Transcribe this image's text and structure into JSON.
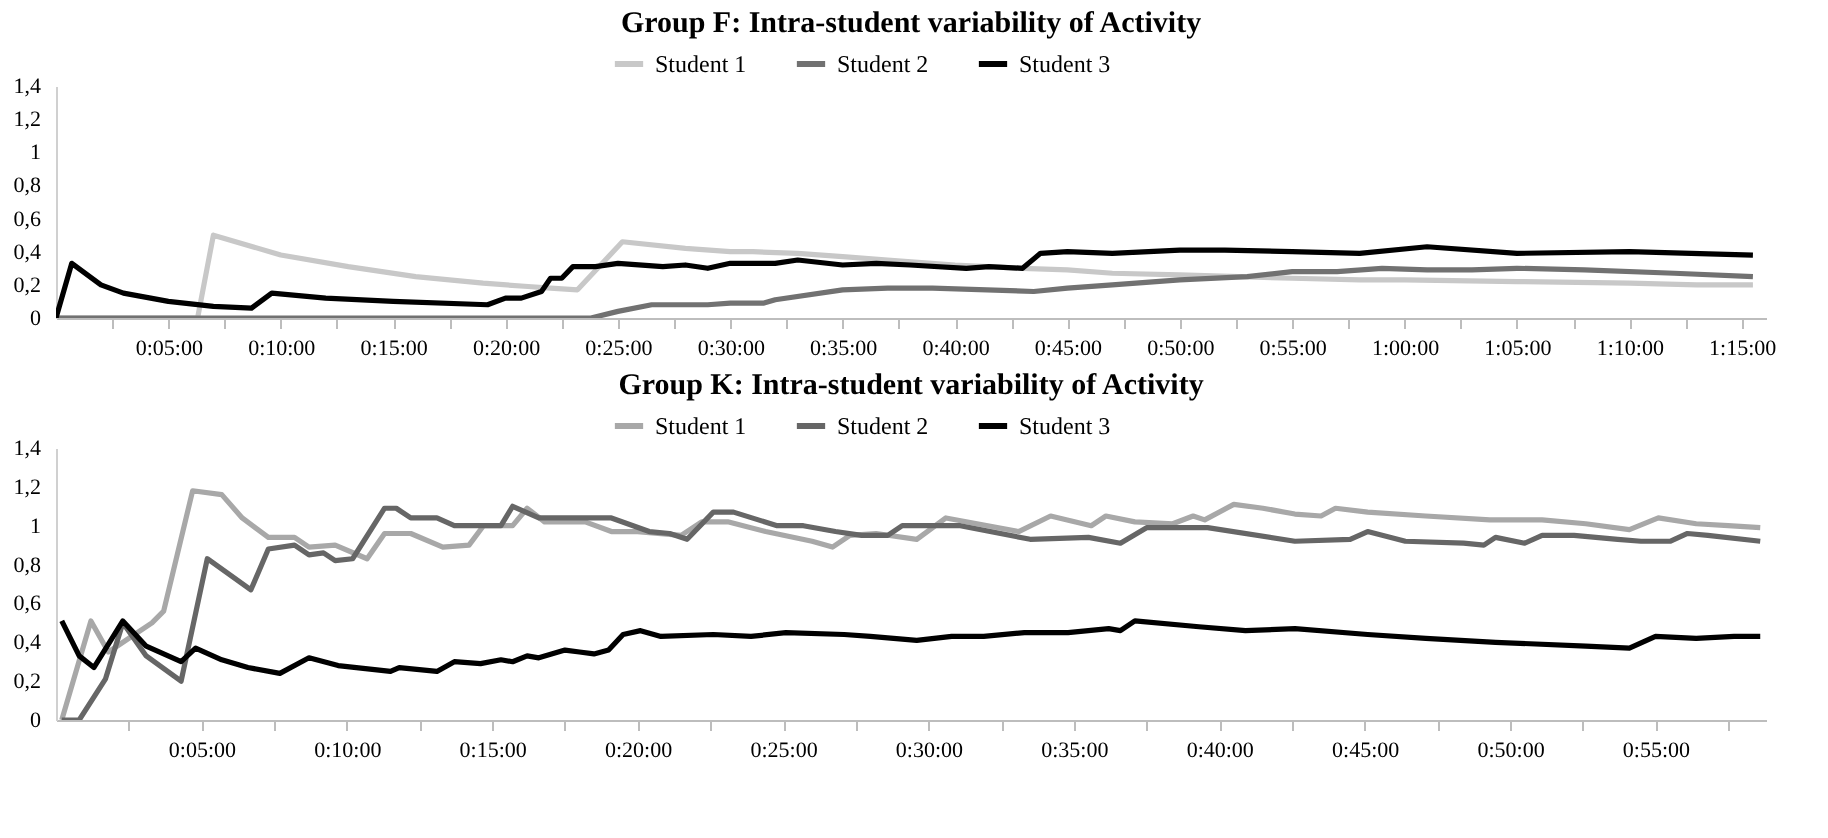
{
  "chart_data": [
    {
      "type": "line",
      "title": "Group F: Intra-student variability of Activity",
      "legend": "top",
      "xlim": [
        0,
        1.268
      ],
      "ylim": [
        0,
        1.4
      ],
      "xticks": [
        {
          "value": 0.041667,
          "label": null
        },
        {
          "value": 0.083333,
          "label": "0:05:00"
        },
        {
          "value": 0.125,
          "label": null
        },
        {
          "value": 0.166667,
          "label": "0:10:00"
        },
        {
          "value": 0.208333,
          "label": null
        },
        {
          "value": 0.25,
          "label": "0:15:00"
        },
        {
          "value": 0.291667,
          "label": null
        },
        {
          "value": 0.333333,
          "label": "0:20:00"
        },
        {
          "value": 0.375,
          "label": null
        },
        {
          "value": 0.416667,
          "label": "0:25:00"
        },
        {
          "value": 0.458333,
          "label": null
        },
        {
          "value": 0.5,
          "label": "0:30:00"
        },
        {
          "value": 0.541667,
          "label": null
        },
        {
          "value": 0.583333,
          "label": "0:35:00"
        },
        {
          "value": 0.625,
          "label": null
        },
        {
          "value": 0.666667,
          "label": "0:40:00"
        },
        {
          "value": 0.708333,
          "label": null
        },
        {
          "value": 0.75,
          "label": "0:45:00"
        },
        {
          "value": 0.791667,
          "label": null
        },
        {
          "value": 0.833333,
          "label": "0:50:00"
        },
        {
          "value": 0.875,
          "label": null
        },
        {
          "value": 0.916667,
          "label": "0:55:00"
        },
        {
          "value": 0.958333,
          "label": null
        },
        {
          "value": 1,
          "label": "1:00:00"
        },
        {
          "value": 1.041667,
          "label": null
        },
        {
          "value": 1.083333,
          "label": "1:05:00"
        },
        {
          "value": 1.125,
          "label": null
        },
        {
          "value": 1.166667,
          "label": "1:10:00"
        },
        {
          "value": 1.208333,
          "label": null
        },
        {
          "value": 1.25,
          "label": "1:15:00"
        }
      ],
      "yticks": [
        {
          "value": 0,
          "label": "0"
        },
        {
          "value": 0.2,
          "label": "0,2"
        },
        {
          "value": 0.4,
          "label": "0,4"
        },
        {
          "value": 0.6,
          "label": "0,6"
        },
        {
          "value": 0.8,
          "label": "0,8"
        },
        {
          "value": 1,
          "label": "1"
        },
        {
          "value": 1.2,
          "label": "1,2"
        },
        {
          "value": 1.4,
          "label": "1,4"
        }
      ],
      "series": [
        {
          "name": "Student 1",
          "color": "#c8c8c8",
          "x": [
            0,
            0.105,
            0.1167,
            0.1667,
            0.2167,
            0.2667,
            0.3167,
            0.35,
            0.3667,
            0.3867,
            0.42,
            0.4667,
            0.5,
            0.5167,
            0.55,
            0.5833,
            0.6167,
            0.6667,
            0.7167,
            0.75,
            0.7833,
            0.8333,
            0.9167,
            0.9667,
            1,
            1.0833,
            1.1667,
            1.2167,
            1.2583
          ],
          "values": [
            0,
            0,
            0.5,
            0.38,
            0.31,
            0.25,
            0.21,
            0.19,
            0.18,
            0.17,
            0.46,
            0.42,
            0.4,
            0.4,
            0.39,
            0.37,
            0.35,
            0.32,
            0.3,
            0.29,
            0.27,
            0.26,
            0.24,
            0.23,
            0.23,
            0.22,
            0.21,
            0.2,
            0.2
          ]
        },
        {
          "name": "Student 2",
          "color": "#717171",
          "x": [
            0,
            0.3967,
            0.4167,
            0.4417,
            0.4833,
            0.5,
            0.525,
            0.5333,
            0.5833,
            0.6167,
            0.65,
            0.725,
            0.75,
            0.7833,
            0.8333,
            0.8833,
            0.9167,
            0.95,
            0.9833,
            1.0167,
            1.05,
            1.0833,
            1.1333,
            1.2,
            1.2583
          ],
          "values": [
            0,
            0,
            0.04,
            0.08,
            0.08,
            0.09,
            0.09,
            0.11,
            0.17,
            0.18,
            0.18,
            0.16,
            0.18,
            0.2,
            0.23,
            0.25,
            0.28,
            0.28,
            0.3,
            0.29,
            0.29,
            0.3,
            0.29,
            0.27,
            0.25
          ]
        },
        {
          "name": "Student 3",
          "color": "#000000",
          "x": [
            0,
            0.0117,
            0.0333,
            0.05,
            0.0833,
            0.1167,
            0.145,
            0.16,
            0.2,
            0.25,
            0.32,
            0.3333,
            0.345,
            0.36,
            0.3667,
            0.375,
            0.3833,
            0.4,
            0.4167,
            0.45,
            0.4667,
            0.4833,
            0.5,
            0.5333,
            0.55,
            0.5833,
            0.6083,
            0.6333,
            0.675,
            0.6917,
            0.7167,
            0.73,
            0.75,
            0.7833,
            0.8333,
            0.8667,
            0.9167,
            0.9667,
            1.0167,
            1.0833,
            1.1667,
            1.2583
          ],
          "values": [
            0,
            0.33,
            0.2,
            0.15,
            0.1,
            0.07,
            0.06,
            0.15,
            0.12,
            0.1,
            0.08,
            0.12,
            0.12,
            0.16,
            0.24,
            0.24,
            0.31,
            0.31,
            0.33,
            0.31,
            0.32,
            0.3,
            0.33,
            0.33,
            0.35,
            0.32,
            0.33,
            0.32,
            0.3,
            0.31,
            0.3,
            0.39,
            0.4,
            0.39,
            0.41,
            0.41,
            0.4,
            0.39,
            0.43,
            0.39,
            0.4,
            0.38
          ]
        }
      ]
    },
    {
      "type": "line",
      "title": "Group K: Intra-student variability of Activity",
      "legend": "top",
      "xlim": [
        0,
        0.98
      ],
      "ylim": [
        0,
        1.4
      ],
      "xticks": [
        {
          "value": 0.041667,
          "label": null
        },
        {
          "value": 0.083333,
          "label": "0:05:00"
        },
        {
          "value": 0.125,
          "label": null
        },
        {
          "value": 0.166667,
          "label": "0:10:00"
        },
        {
          "value": 0.208333,
          "label": null
        },
        {
          "value": 0.25,
          "label": "0:15:00"
        },
        {
          "value": 0.291667,
          "label": null
        },
        {
          "value": 0.333333,
          "label": "0:20:00"
        },
        {
          "value": 0.375,
          "label": null
        },
        {
          "value": 0.416667,
          "label": "0:25:00"
        },
        {
          "value": 0.458333,
          "label": null
        },
        {
          "value": 0.5,
          "label": "0:30:00"
        },
        {
          "value": 0.541667,
          "label": null
        },
        {
          "value": 0.583333,
          "label": "0:35:00"
        },
        {
          "value": 0.625,
          "label": null
        },
        {
          "value": 0.666667,
          "label": "0:40:00"
        },
        {
          "value": 0.708333,
          "label": null
        },
        {
          "value": 0.75,
          "label": "0:45:00"
        },
        {
          "value": 0.791667,
          "label": null
        },
        {
          "value": 0.833333,
          "label": "0:50:00"
        },
        {
          "value": 0.875,
          "label": null
        },
        {
          "value": 0.916667,
          "label": "0:55:00"
        },
        {
          "value": 0.958333,
          "label": null
        }
      ],
      "yticks": [
        {
          "value": 0,
          "label": "0"
        },
        {
          "value": 0.2,
          "label": "0,2"
        },
        {
          "value": 0.4,
          "label": "0,4"
        },
        {
          "value": 0.6,
          "label": "0,6"
        },
        {
          "value": 0.8,
          "label": "0,8"
        },
        {
          "value": 1,
          "label": "1"
        },
        {
          "value": 1.2,
          "label": "1,2"
        },
        {
          "value": 1.4,
          "label": "1,4"
        }
      ],
      "series": [
        {
          "name": "Student 1",
          "color": "#a8a8a8",
          "x": [
            0.0033,
            0.02,
            0.03,
            0.055,
            0.0617,
            0.0783,
            0.095,
            0.1067,
            0.1217,
            0.1367,
            0.145,
            0.16,
            0.1783,
            0.1883,
            0.2033,
            0.2217,
            0.2367,
            0.245,
            0.2617,
            0.27,
            0.28,
            0.3033,
            0.3183,
            0.3333,
            0.3583,
            0.37,
            0.385,
            0.4067,
            0.4333,
            0.445,
            0.455,
            0.47,
            0.4933,
            0.51,
            0.5517,
            0.57,
            0.5933,
            0.6017,
            0.6183,
            0.64,
            0.6517,
            0.6583,
            0.675,
            0.6917,
            0.71,
            0.725,
            0.7333,
            0.7517,
            0.785,
            0.8217,
            0.8517,
            0.8767,
            0.9017,
            0.9183,
            0.94,
            0.9583,
            0.9767
          ],
          "values": [
            0,
            0.51,
            0.35,
            0.5,
            0.56,
            1.18,
            1.16,
            1.04,
            0.94,
            0.94,
            0.89,
            0.9,
            0.83,
            0.96,
            0.96,
            0.89,
            0.9,
            1.0,
            1.0,
            1.09,
            1.02,
            1.02,
            0.97,
            0.97,
            0.95,
            1.02,
            1.02,
            0.97,
            0.92,
            0.89,
            0.95,
            0.96,
            0.93,
            1.04,
            0.97,
            1.05,
            1.0,
            1.05,
            1.02,
            1.01,
            1.05,
            1.03,
            1.11,
            1.09,
            1.06,
            1.05,
            1.09,
            1.07,
            1.05,
            1.03,
            1.03,
            1.01,
            0.98,
            1.04,
            1.01,
            1.0,
            0.99
          ]
        },
        {
          "name": "Student 2",
          "color": "#666666",
          "x": [
            0.0033,
            0.0133,
            0.0283,
            0.0383,
            0.0517,
            0.0717,
            0.0867,
            0.1117,
            0.1217,
            0.1367,
            0.145,
            0.1533,
            0.16,
            0.17,
            0.1883,
            0.195,
            0.2033,
            0.2183,
            0.2283,
            0.255,
            0.2617,
            0.2767,
            0.3183,
            0.34,
            0.3517,
            0.3617,
            0.3767,
            0.3883,
            0.4133,
            0.4283,
            0.4467,
            0.4617,
            0.4767,
            0.485,
            0.5183,
            0.5583,
            0.5917,
            0.61,
            0.625,
            0.66,
            0.71,
            0.7417,
            0.7517,
            0.7733,
            0.8067,
            0.8183,
            0.825,
            0.8417,
            0.8517,
            0.87,
            0.895,
            0.9083,
            0.925,
            0.935,
            0.9467,
            0.9767
          ],
          "values": [
            0,
            0,
            0.21,
            0.5,
            0.33,
            0.2,
            0.83,
            0.67,
            0.88,
            0.9,
            0.85,
            0.86,
            0.82,
            0.83,
            1.09,
            1.09,
            1.04,
            1.04,
            1.0,
            1.0,
            1.1,
            1.04,
            1.04,
            0.97,
            0.96,
            0.93,
            1.07,
            1.07,
            1.0,
            1.0,
            0.97,
            0.95,
            0.95,
            1.0,
            1.0,
            0.93,
            0.94,
            0.91,
            0.99,
            0.99,
            0.92,
            0.93,
            0.97,
            0.92,
            0.91,
            0.9,
            0.94,
            0.91,
            0.95,
            0.95,
            0.93,
            0.92,
            0.92,
            0.96,
            0.95,
            0.92
          ]
        },
        {
          "name": "Student 3",
          "color": "#000000",
          "x": [
            0.0033,
            0.0133,
            0.0217,
            0.0383,
            0.0517,
            0.0717,
            0.08,
            0.095,
            0.11,
            0.1283,
            0.145,
            0.1617,
            0.1917,
            0.1967,
            0.2183,
            0.2283,
            0.2433,
            0.255,
            0.2617,
            0.27,
            0.2767,
            0.2917,
            0.3,
            0.3083,
            0.3167,
            0.325,
            0.335,
            0.3467,
            0.3767,
            0.3983,
            0.4183,
            0.4517,
            0.4667,
            0.4933,
            0.5133,
            0.5317,
            0.555,
            0.58,
            0.6033,
            0.61,
            0.6183,
            0.655,
            0.6817,
            0.71,
            0.7517,
            0.785,
            0.825,
            0.8767,
            0.9017,
            0.9167,
            0.94,
            0.9617,
            0.9767
          ],
          "values": [
            0.51,
            0.33,
            0.27,
            0.51,
            0.38,
            0.3,
            0.37,
            0.31,
            0.27,
            0.24,
            0.32,
            0.28,
            0.25,
            0.27,
            0.25,
            0.3,
            0.29,
            0.31,
            0.3,
            0.33,
            0.32,
            0.36,
            0.35,
            0.34,
            0.36,
            0.44,
            0.46,
            0.43,
            0.44,
            0.43,
            0.45,
            0.44,
            0.43,
            0.41,
            0.43,
            0.43,
            0.45,
            0.45,
            0.47,
            0.46,
            0.51,
            0.48,
            0.46,
            0.47,
            0.44,
            0.42,
            0.4,
            0.38,
            0.37,
            0.43,
            0.42,
            0.43,
            0.43
          ]
        }
      ]
    }
  ]
}
